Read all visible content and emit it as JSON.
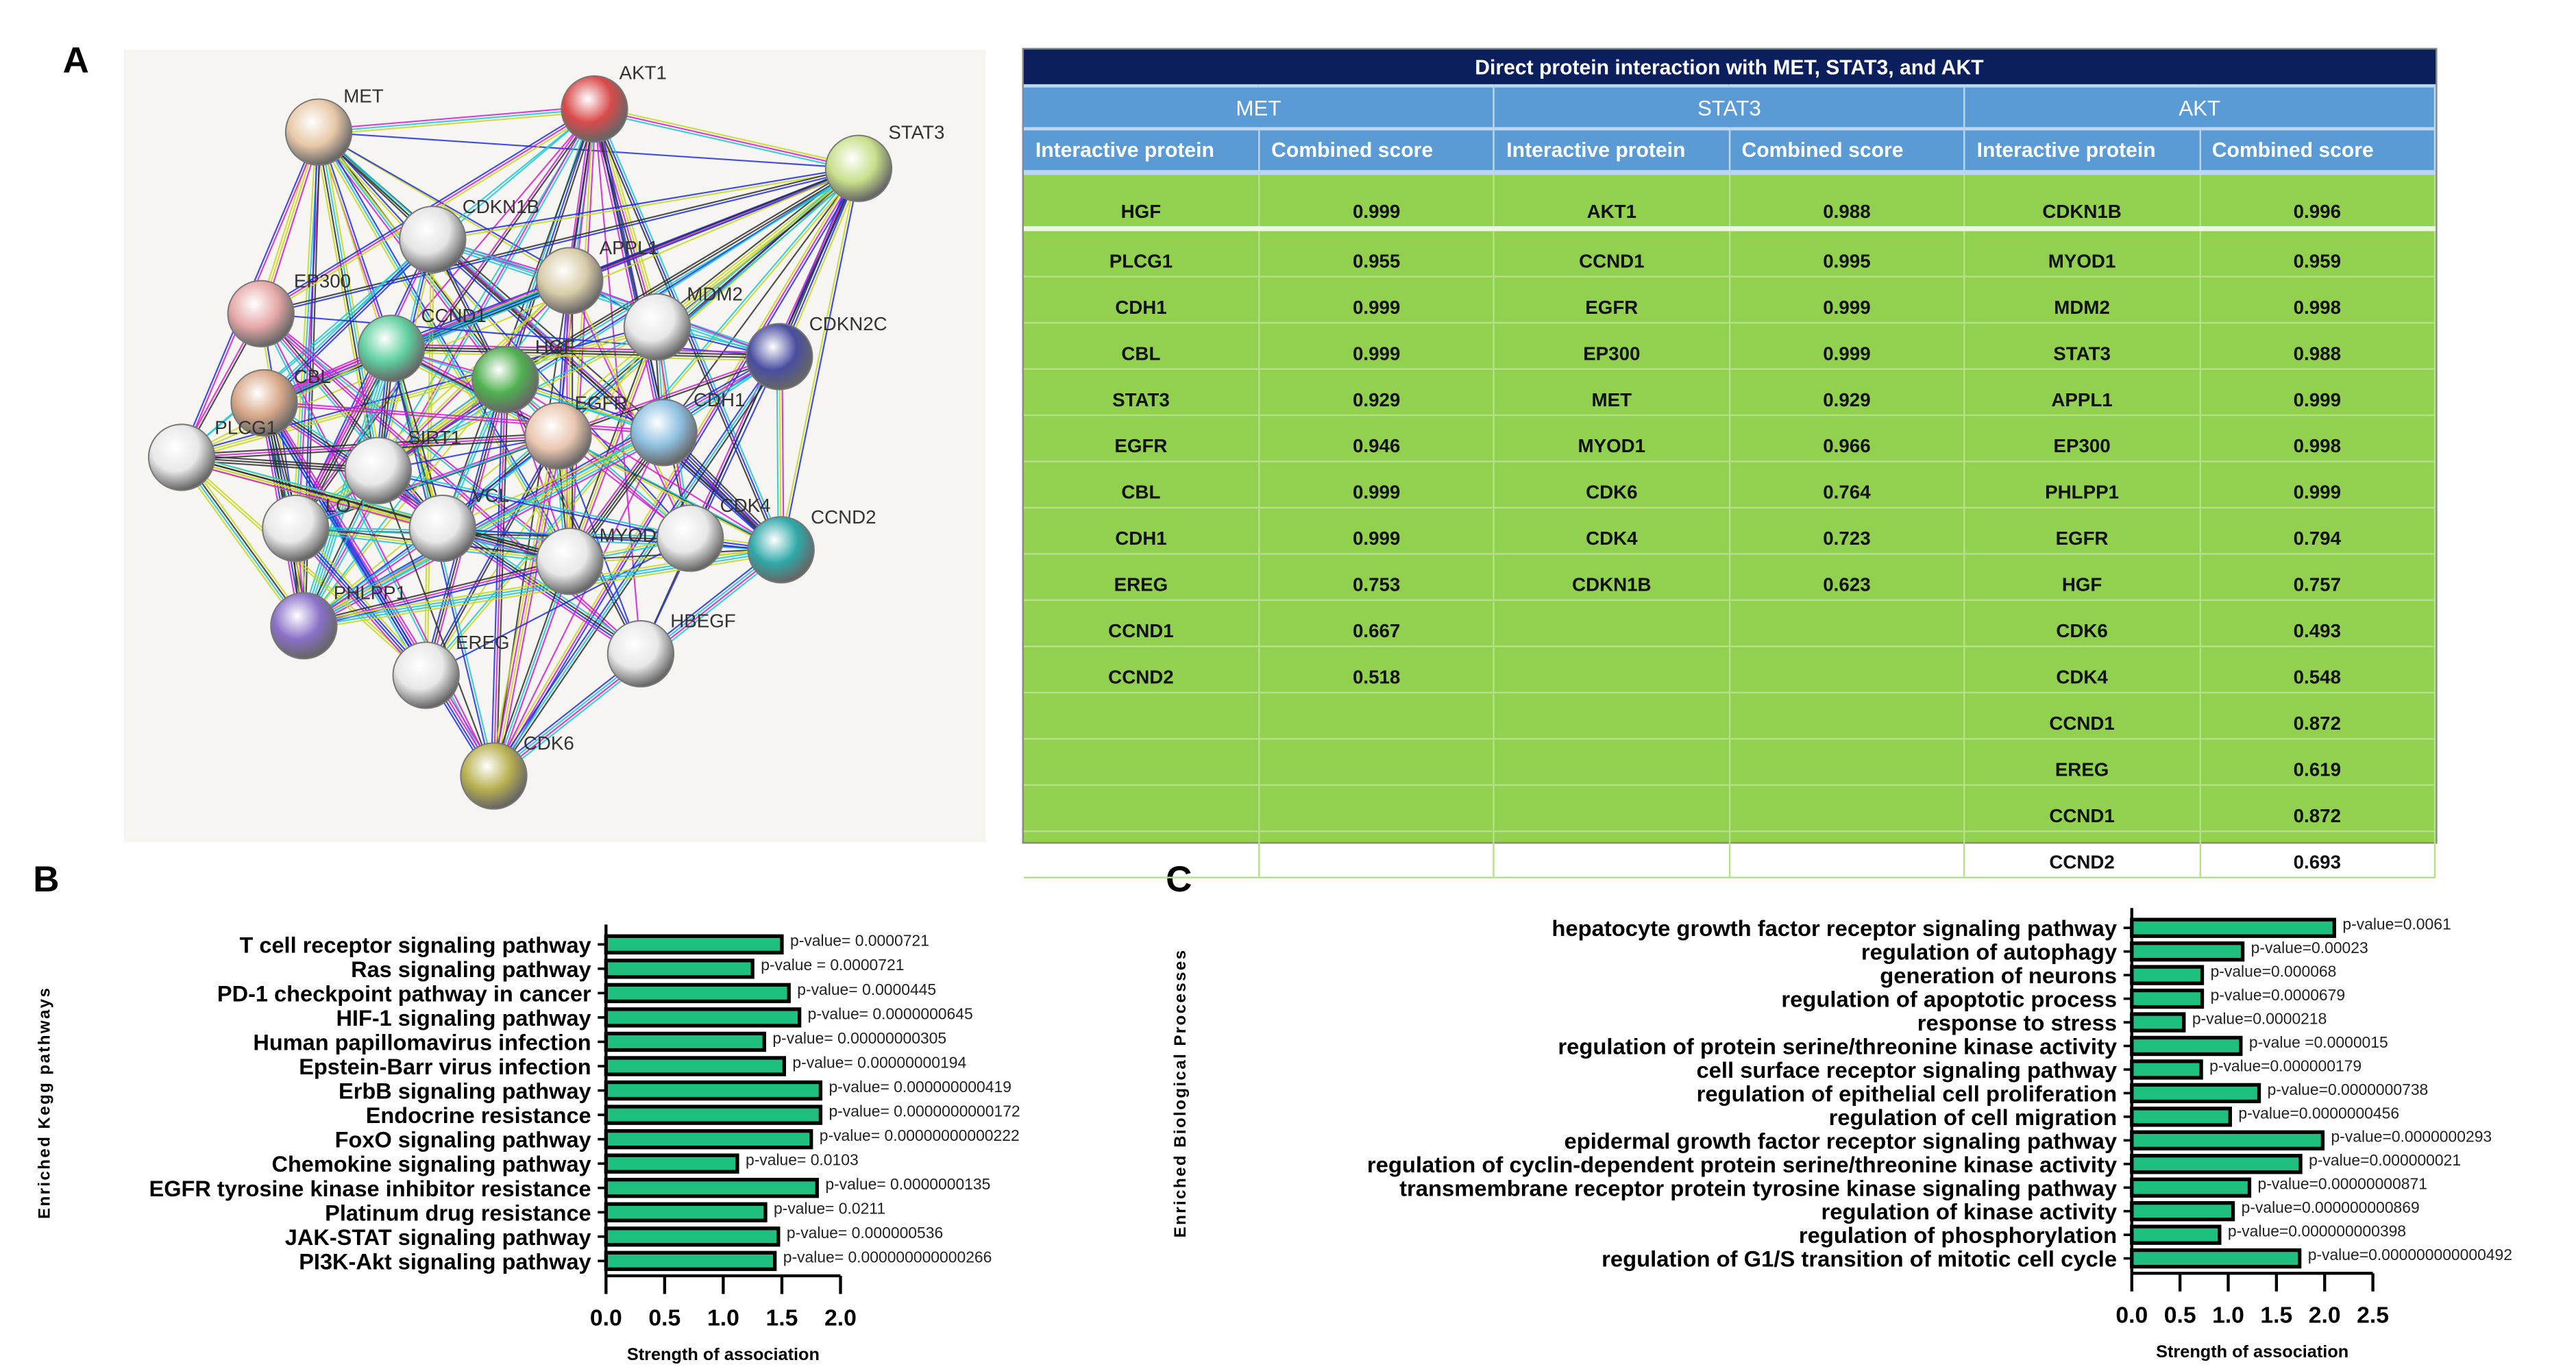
{
  "panels": {
    "a": "A",
    "b": "B",
    "c": "C"
  },
  "network": {
    "nodes": [
      "MET",
      "AKT1",
      "STAT3",
      "CDKN1B",
      "APPL1",
      "EP300",
      "MDM2",
      "CDKN2C",
      "CCND1",
      "HGF",
      "CBL",
      "EGFR",
      "CDH1",
      "PLCG1",
      "SIRT1",
      "LO",
      "VCL",
      "MYOD",
      "CDK4",
      "CCND2",
      "PHLPP1",
      "EREG",
      "HBEGF",
      "CDK6"
    ],
    "node_colors": [
      "#e8c8a8",
      "#d94a4a",
      "#c8e08a",
      "#e4e4e4",
      "#d8cca8",
      "#e6a8a8",
      "#e8e8e8",
      "#4a4ea0",
      "#60d0a0",
      "#50b050",
      "#d8a888",
      "#eac6b0",
      "#8ec0e0",
      "#e8e8e8",
      "#e8e8e8",
      "#e8e8e8",
      "#e8e8e8",
      "#e8e8e8",
      "#e8e8e8",
      "#30a8a8",
      "#8a70c8",
      "#e8e8e8",
      "#e8e8e8",
      "#b8b050"
    ],
    "edge_colors": [
      "#d020d0",
      "#20c8d0",
      "#c8d820",
      "#303030",
      "#2030e0"
    ]
  },
  "table": {
    "title": "Direct protein interaction with MET, STAT3, and AKT",
    "groups": [
      "MET",
      "STAT3",
      "AKT"
    ],
    "col_protein": "Interactive protein",
    "col_score": "Combined score",
    "rows": [
      [
        "HGF",
        "0.999",
        "AKT1",
        "0.988",
        "CDKN1B",
        "0.996"
      ],
      [
        "PLCG1",
        "0.955",
        "CCND1",
        "0.995",
        "MYOD1",
        "0.959"
      ],
      [
        "CDH1",
        "0.999",
        "EGFR",
        "0.999",
        "MDM2",
        "0.998"
      ],
      [
        "CBL",
        "0.999",
        "EP300",
        "0.999",
        "STAT3",
        "0.988"
      ],
      [
        "STAT3",
        "0.929",
        "MET",
        "0.929",
        "APPL1",
        "0.999"
      ],
      [
        "EGFR",
        "0.946",
        "MYOD1",
        "0.966",
        "EP300",
        "0.998"
      ],
      [
        "CBL",
        "0.999",
        "CDK6",
        "0.764",
        "PHLPP1",
        "0.999"
      ],
      [
        "CDH1",
        "0.999",
        "CDK4",
        "0.723",
        "EGFR",
        "0.794"
      ],
      [
        "EREG",
        "0.753",
        "CDKN1B",
        "0.623",
        "HGF",
        "0.757"
      ],
      [
        "CCND1",
        "0.667",
        "",
        "",
        "CDK6",
        "0.493"
      ],
      [
        "CCND2",
        "0.518",
        "",
        "",
        "CDK4",
        "0.548"
      ],
      [
        "",
        "",
        "",
        "",
        "CCND1",
        "0.872"
      ],
      [
        "",
        "",
        "",
        "",
        "EREG",
        "0.619"
      ],
      [
        "",
        "",
        "",
        "",
        "CCND1",
        "0.872"
      ],
      [
        "",
        "",
        "",
        "",
        "CCND2",
        "0.693"
      ]
    ]
  },
  "chart_data": [
    {
      "type": "bar",
      "orientation": "horizontal",
      "title": "",
      "ylabel": "Enriched Kegg pathways",
      "xlabel": "Strength of association",
      "xlim": [
        0,
        2.0
      ],
      "xticks": [
        "0.0",
        "0.5",
        "1.0",
        "1.5",
        "2.0"
      ],
      "categories": [
        "T cell receptor signaling pathway",
        "Ras signaling pathway",
        "PD-1 checkpoint pathway in cancer",
        "HIF-1 signaling pathway",
        "Human papillomavirus infection",
        "Epstein-Barr virus infection",
        "ErbB signaling pathway",
        "Endocrine resistance",
        "FoxO signaling pathway",
        "Chemokine signaling pathway",
        "EGFR tyrosine kinase inhibitor resistance",
        "Platinum drug resistance",
        "JAK-STAT signaling pathway",
        "PI3K-Akt signaling pathway"
      ],
      "values": [
        1.5,
        1.25,
        1.56,
        1.65,
        1.35,
        1.52,
        1.83,
        1.83,
        1.75,
        1.12,
        1.8,
        1.36,
        1.47,
        1.44
      ],
      "annotations": [
        "p-value= 0.0000721",
        "p-value = 0.0000721",
        "p-value= 0.0000445",
        "p-value= 0.0000000645",
        "p-value= 0.00000000305",
        "p-value= 0.00000000194",
        "p-value= 0.000000000419",
        "p-value= 0.0000000000172",
        "p-value= 0.00000000000222",
        "p-value= 0.0103",
        "p-value= 0.0000000135",
        "p-value= 0.0211",
        "p-value= 0.000000536",
        "p-value= 0.000000000000266"
      ],
      "bar_color": "#1fbf7f"
    },
    {
      "type": "bar",
      "orientation": "horizontal",
      "title": "",
      "ylabel": "Enriched Biological Processes",
      "xlabel": "Strength of association",
      "xlim": [
        0,
        2.5
      ],
      "xticks": [
        "0.0",
        "0.5",
        "1.0",
        "1.5",
        "2.0",
        "2.5"
      ],
      "categories": [
        "hepatocyte growth factor receptor signaling pathway",
        "regulation of autophagy",
        "generation of neurons",
        "regulation of apoptotic process",
        "response to stress",
        "regulation of protein serine/threonine kinase activity",
        "cell surface receptor signaling pathway",
        "regulation of epithelial cell proliferation",
        "regulation of cell migration",
        "epidermal growth factor receptor signaling pathway",
        "regulation of cyclin-dependent protein serine/threonine kinase activity",
        "transmembrane receptor protein tyrosine kinase signaling pathway",
        "regulation of kinase activity",
        "regulation of phosphorylation",
        "regulation of G1/S transition of mitotic cell cycle"
      ],
      "values": [
        2.1,
        1.15,
        0.73,
        0.73,
        0.54,
        1.13,
        0.72,
        1.32,
        1.02,
        1.98,
        1.75,
        1.22,
        1.05,
        0.91,
        1.74
      ],
      "annotations": [
        "p-value=0.0061",
        "p-value=0.00023",
        "p-value=0.000068",
        "p-value=0.0000679",
        "p-value=0.0000218",
        "p-value =0.0000015",
        "p-value=0.000000179",
        "p-value=0.0000000738",
        "p-value=0.0000000456",
        "p-value=0.0000000293",
        "p-value=0.000000021",
        "p-value=0.00000000871",
        "p-value=0.000000000869",
        "p-value=0.000000000398",
        "p-value=0.000000000000492"
      ],
      "bar_color": "#1fbf7f"
    }
  ]
}
